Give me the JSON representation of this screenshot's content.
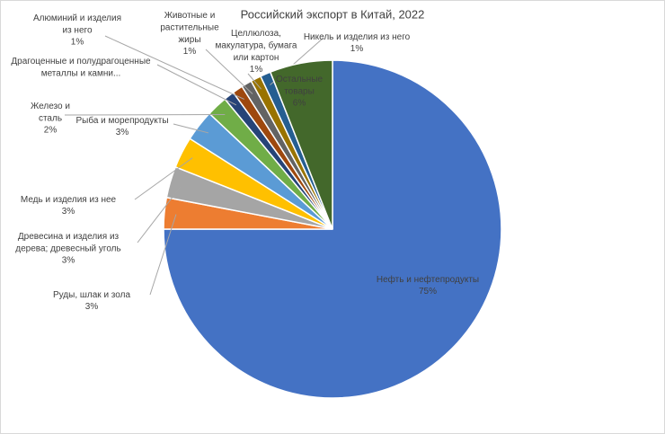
{
  "chart_data": {
    "type": "pie",
    "title": "Российский экспорт в Китай, 2022",
    "categories": [
      "Нефть и нефтепродукты",
      "Руды, шлак и зола",
      "Древесина и изделия из\nдерева; древесный уголь",
      "Медь и изделия из нее",
      "Рыба и морепродукты",
      "Железо и\nсталь",
      "Драгоценные и полудрагоценные\nметаллы и камни...",
      "Алюминий и изделия\nиз него",
      "Животные и\nрастительные\nжиры",
      "Целлюлоза,\nмакулатура, бумага\nили картон",
      "Никель и изделия из него",
      "Остальные\nтовары"
    ],
    "values": [
      75,
      3,
      3,
      3,
      3,
      2,
      1,
      1,
      1,
      1,
      1,
      6
    ],
    "value_labels": [
      "75%",
      "3%",
      "3%",
      "3%",
      "3%",
      "2%",
      null,
      "1%",
      "1%",
      "1%",
      "1%",
      "6%"
    ],
    "colors": [
      "#4472c4",
      "#ed7d31",
      "#a5a5a5",
      "#ffc000",
      "#5b9bd5",
      "#70ad47",
      "#264478",
      "#9e480e",
      "#636363",
      "#997300",
      "#255e91",
      "#43682b"
    ]
  }
}
